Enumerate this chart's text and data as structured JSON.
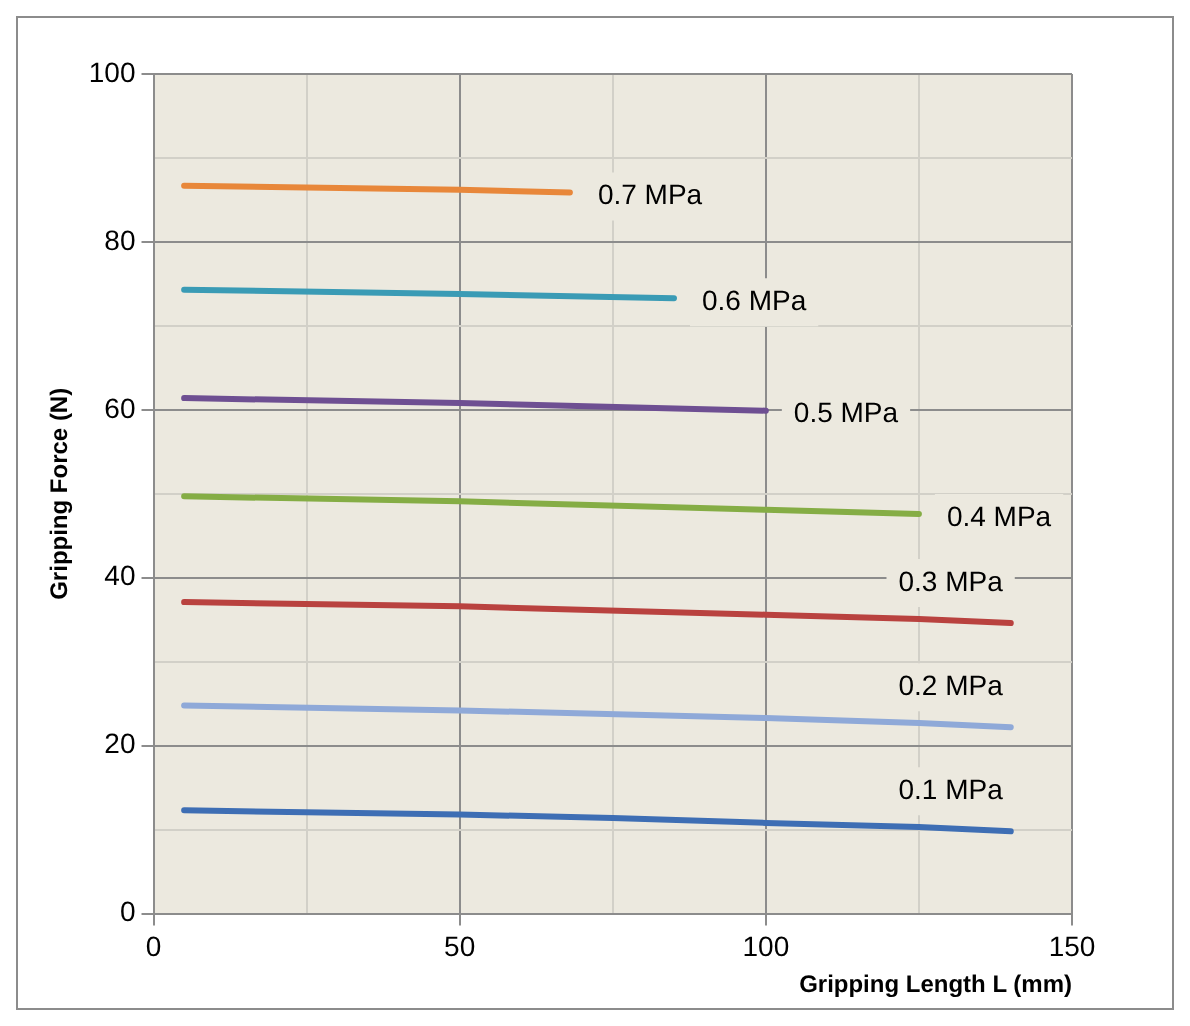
{
  "chart_data": {
    "type": "line",
    "xlabel": "Gripping Length L (mm)",
    "ylabel": "Gripping Force (N)",
    "xlim": [
      0,
      150
    ],
    "xticks": [
      0,
      {
        "value": 25,
        "label": null
      },
      50,
      {
        "value": 75,
        "label": null
      },
      100,
      {
        "value": 125,
        "label": null
      },
      150
    ],
    "ylim": [
      0,
      100
    ],
    "yticks": [
      0,
      {
        "value": 10,
        "label": null
      },
      20,
      {
        "value": 30,
        "label": null
      },
      40,
      {
        "value": 50,
        "label": null
      },
      60,
      {
        "value": 70,
        "label": null
      },
      80,
      {
        "value": 90,
        "label": null
      },
      100
    ],
    "grid": true,
    "legend": false,
    "marker": "none",
    "line_style": "solid",
    "series": [
      {
        "name": "0.7 MPa",
        "color": "#e8873a",
        "x": [
          5,
          50,
          68
        ],
        "values": [
          86.7,
          86.2,
          85.9
        ]
      },
      {
        "name": "0.6 MPa",
        "color": "#3a9bb5",
        "x": [
          5,
          50,
          85
        ],
        "values": [
          74.3,
          73.8,
          73.3
        ]
      },
      {
        "name": "0.5 MPa",
        "color": "#6e4f92",
        "x": [
          5,
          50,
          100
        ],
        "values": [
          61.4,
          60.8,
          59.9
        ]
      },
      {
        "name": "0.4 MPa",
        "color": "#85ad45",
        "x": [
          5,
          50,
          100,
          125
        ],
        "values": [
          49.7,
          49.1,
          48.1,
          47.6
        ]
      },
      {
        "name": "0.3 MPa",
        "color": "#b9423f",
        "x": [
          5,
          50,
          100,
          125,
          140
        ],
        "values": [
          37.1,
          36.6,
          35.6,
          35.1,
          34.6
        ]
      },
      {
        "name": "0.2 MPa",
        "color": "#8fa9d8",
        "x": [
          5,
          50,
          100,
          125,
          140
        ],
        "values": [
          24.8,
          24.2,
          23.3,
          22.7,
          22.2
        ]
      },
      {
        "name": "0.1 MPa",
        "color": "#3e6eb4",
        "x": [
          5,
          50,
          75,
          100,
          125,
          140
        ],
        "values": [
          12.3,
          11.8,
          11.4,
          10.8,
          10.3,
          9.8
        ]
      }
    ]
  }
}
